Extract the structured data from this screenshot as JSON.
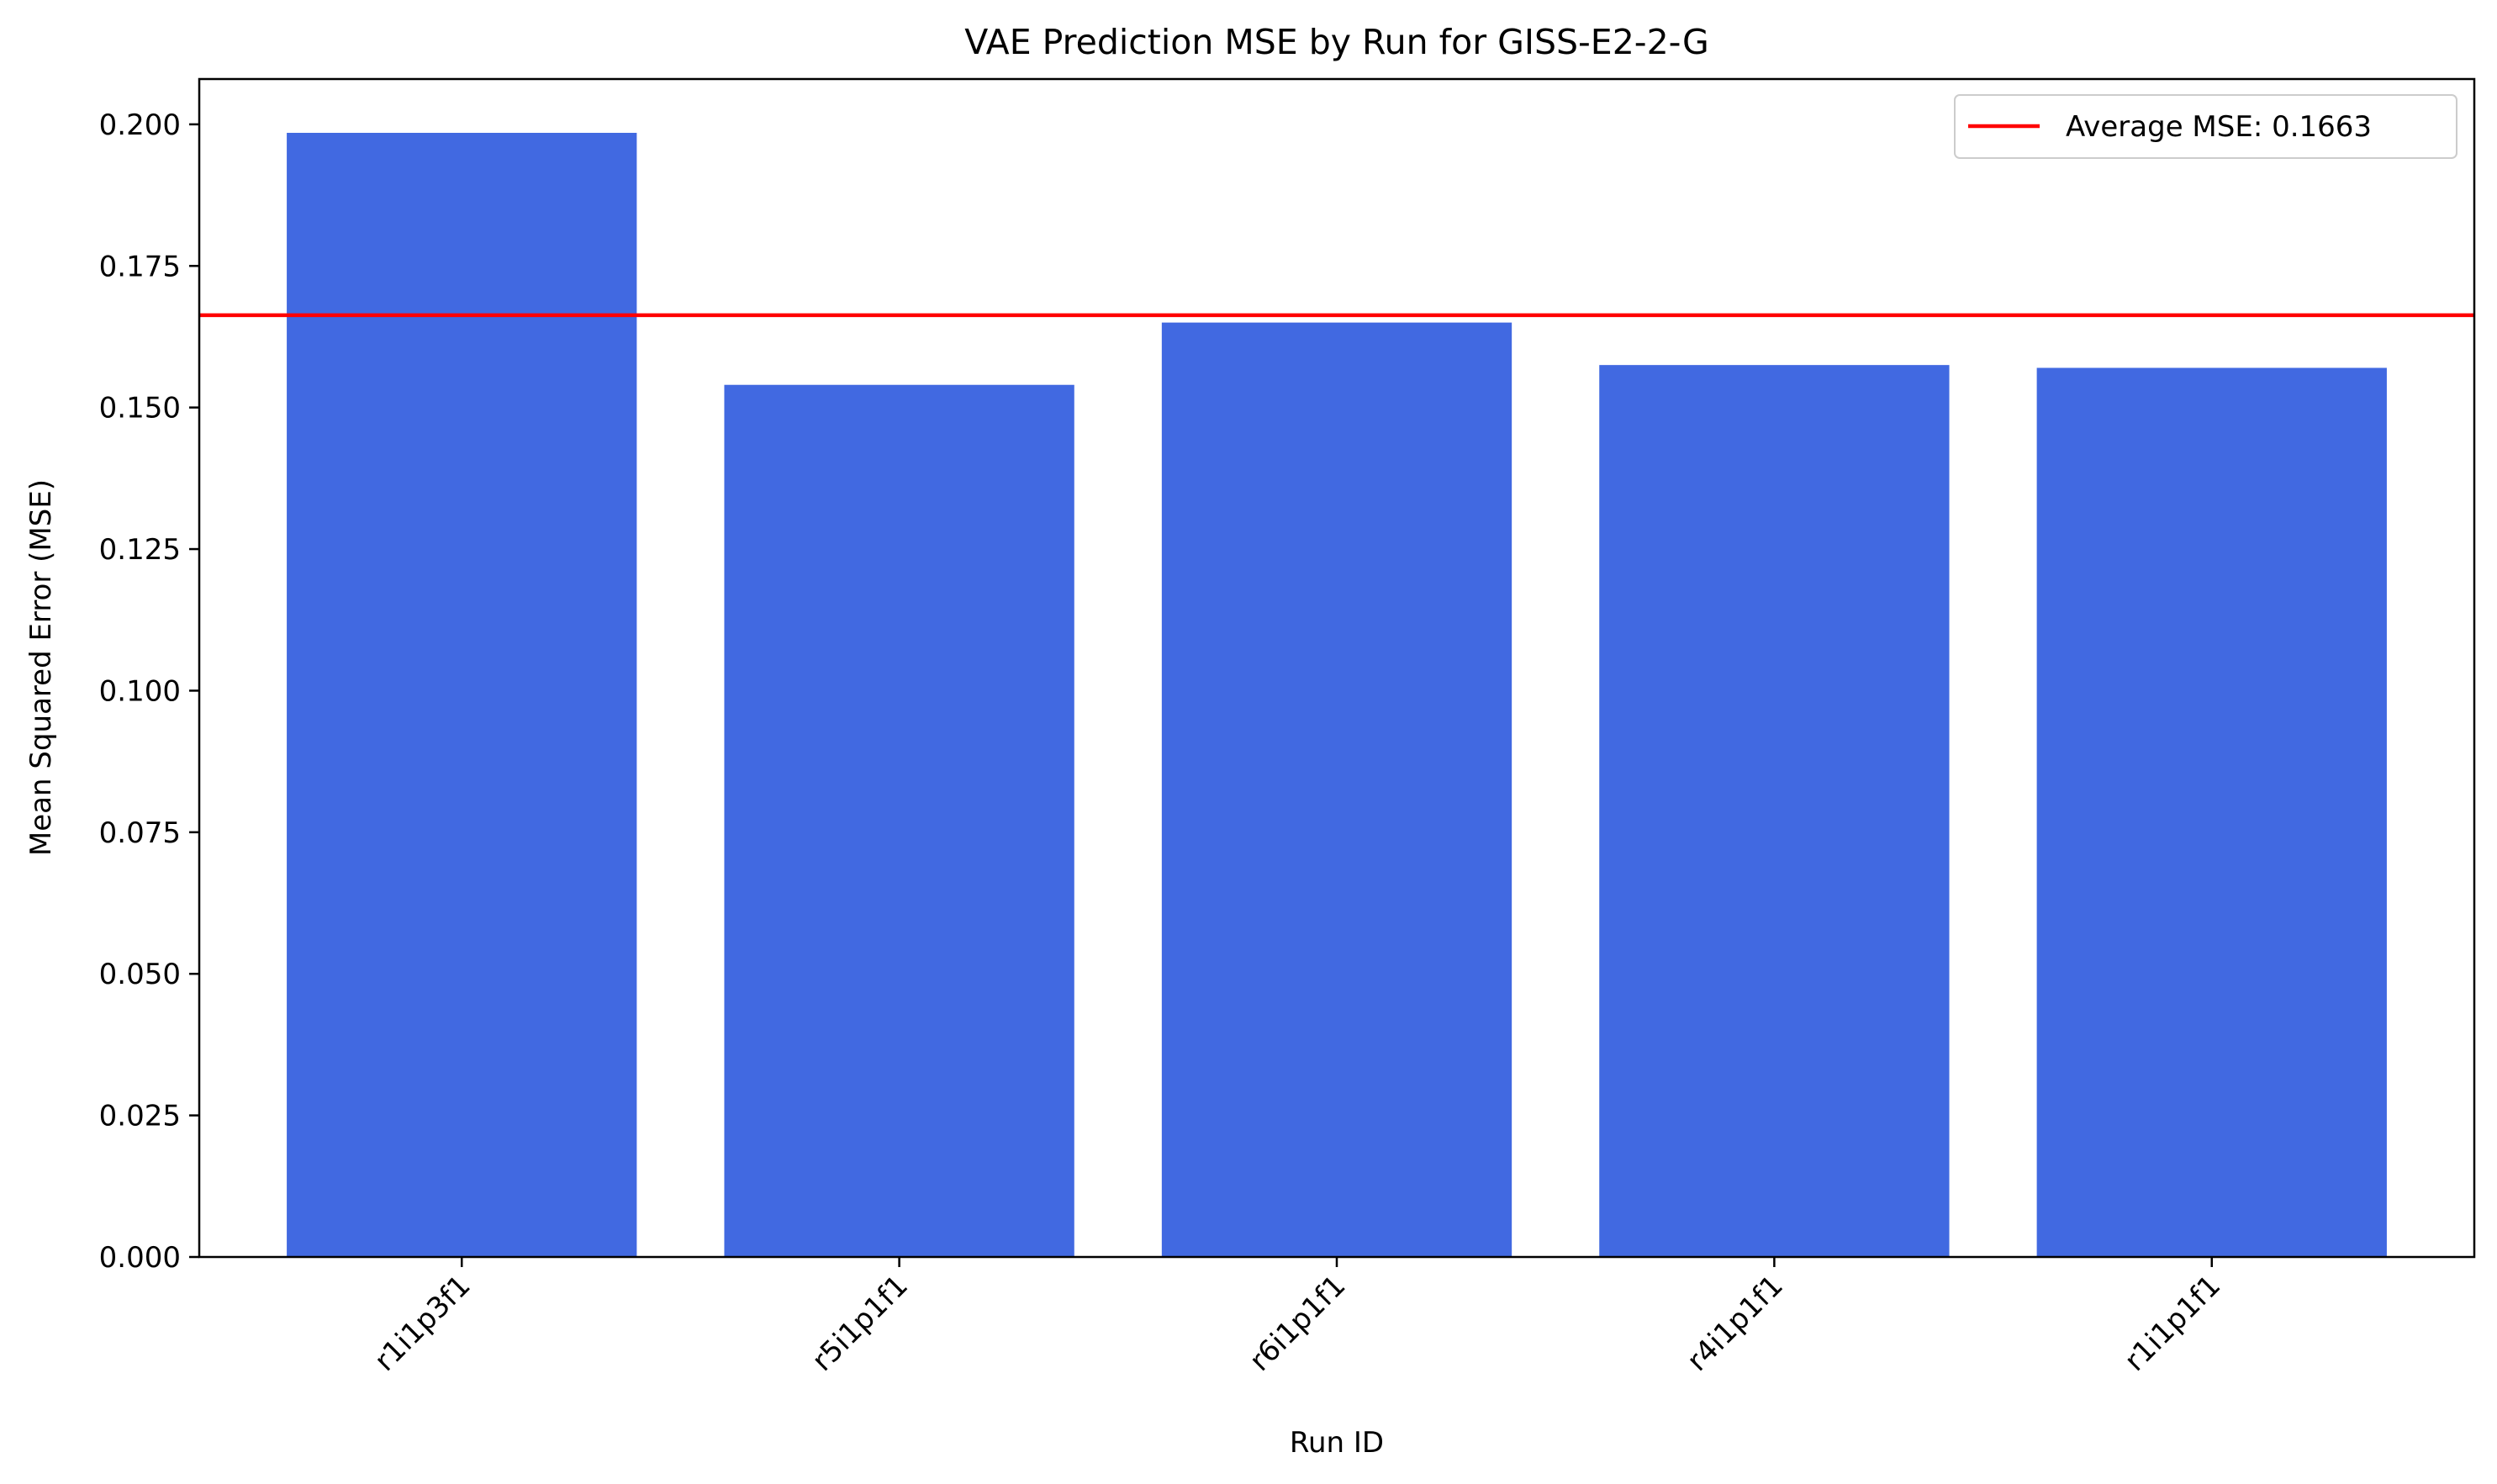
{
  "chart_data": {
    "type": "bar",
    "title": "VAE Prediction MSE by Run for GISS-E2-2-G",
    "xlabel": "Run ID",
    "ylabel": "Mean Squared Error (MSE)",
    "categories": [
      "r1i1p3f1",
      "r5i1p1f1",
      "r6i1p1f1",
      "r4i1p1f1",
      "r1i1p1f1"
    ],
    "values": [
      0.1985,
      0.154,
      0.165,
      0.1575,
      0.157
    ],
    "ylim": [
      0,
      0.208
    ],
    "yticks": [
      0.0,
      0.025,
      0.05,
      0.075,
      0.1,
      0.125,
      0.15,
      0.175,
      0.2
    ],
    "ytick_labels": [
      "0.000",
      "0.025",
      "0.050",
      "0.075",
      "0.100",
      "0.125",
      "0.150",
      "0.175",
      "0.200"
    ],
    "average_line": {
      "value": 0.1663,
      "label": "Average MSE: 0.1663",
      "color": "#ff0000"
    },
    "bar_color": "#4169e1",
    "legend_position": "top-right",
    "grid": false
  }
}
